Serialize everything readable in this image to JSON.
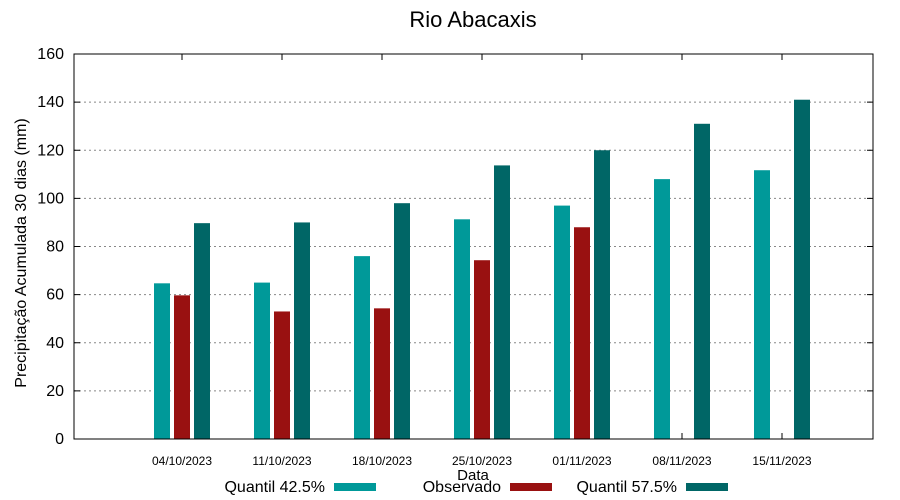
{
  "chart_data": {
    "type": "bar",
    "title": "Rio Abacaxis",
    "xlabel": "Data",
    "ylabel": "Precipitação Acumulada 30 dias (mm)",
    "ylim": [
      0,
      160
    ],
    "yticks": [
      0,
      20,
      40,
      60,
      80,
      100,
      120,
      140,
      160
    ],
    "grid": true,
    "legend_position": "bottom",
    "categories": [
      "04/10/2023",
      "11/10/2023",
      "18/10/2023",
      "25/10/2023",
      "01/11/2023",
      "08/11/2023",
      "15/11/2023"
    ],
    "series": [
      {
        "name": "Quantil 42.5%",
        "color": "#009999",
        "values": [
          64.7,
          65.0,
          76.0,
          91.3,
          97.0,
          108.0,
          111.7
        ]
      },
      {
        "name": "Observado",
        "color": "#991111",
        "values": [
          59.7,
          53.0,
          54.3,
          74.3,
          88.0,
          null,
          null
        ]
      },
      {
        "name": "Quantil 57.5%",
        "color": "#006666",
        "values": [
          89.7,
          90.0,
          98.0,
          113.7,
          120.0,
          131.0,
          141.0
        ]
      }
    ]
  }
}
